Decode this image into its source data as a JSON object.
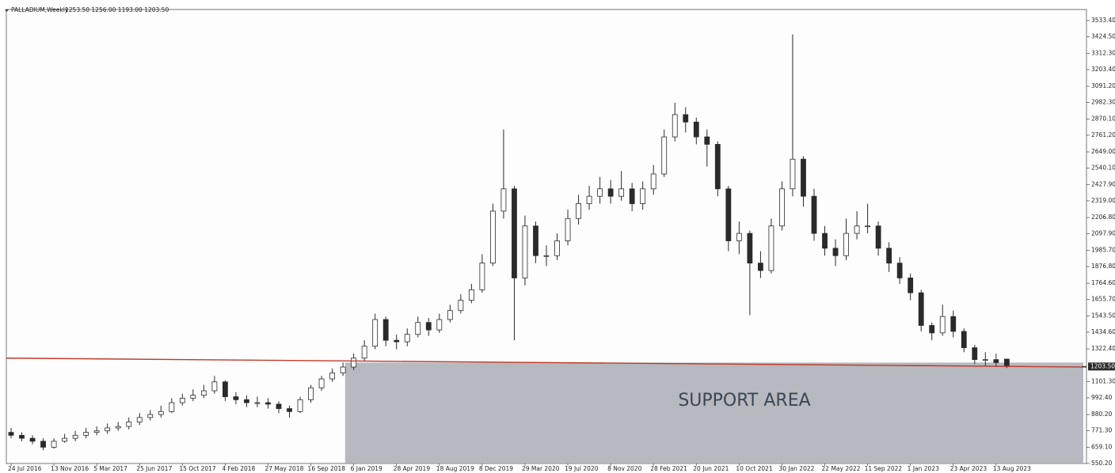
{
  "chart_data": {
    "type": "candlestick",
    "title": "PALLADIUM,Weekly",
    "quote": "1253.50 1256.00 1193.00 1203.50",
    "categories": [
      "24 Jul 2016",
      null,
      null,
      null,
      "13 Nov 2016",
      null,
      null,
      null,
      "5 Mar 2017",
      null,
      null,
      null,
      "25 Jun 2017",
      null,
      null,
      null,
      "15 Oct 2017",
      null,
      null,
      null,
      "4 Feb 2018",
      null,
      null,
      null,
      "27 May 2018",
      null,
      null,
      null,
      "16 Sep 2018",
      null,
      null,
      null,
      "6 Jan 2019",
      null,
      null,
      null,
      "28 Apr 2019",
      null,
      null,
      null,
      "18 Aug 2019",
      null,
      null,
      null,
      "8 Dec 2019",
      null,
      null,
      null,
      "29 Mar 2020",
      null,
      null,
      null,
      "19 Jul 2020",
      null,
      null,
      null,
      "8 Nov 2020",
      null,
      null,
      null,
      "28 Feb 2021",
      null,
      null,
      null,
      "20 Jun 2021",
      null,
      null,
      null,
      "10 Oct 2021",
      null,
      null,
      null,
      "30 Jan 2022",
      null,
      null,
      null,
      "22 May 2022",
      null,
      null,
      null,
      "11 Sep 2022",
      null,
      null,
      null,
      "1 Jan 2023",
      null,
      null,
      null,
      "23 Apr 2023",
      null,
      null,
      null,
      "13 Aug 2023",
      null
    ],
    "open": [
      760,
      740,
      720,
      700,
      660,
      700,
      720,
      740,
      760,
      770,
      790,
      800,
      830,
      860,
      880,
      900,
      960,
      990,
      1010,
      1040,
      1100,
      1000,
      980,
      960,
      960,
      950,
      920,
      900,
      980,
      1060,
      1120,
      1160,
      1200,
      1260,
      1340,
      1520,
      1380,
      1370,
      1420,
      1500,
      1450,
      1520,
      1580,
      1650,
      1720,
      1900,
      2250,
      2400,
      1800,
      2150,
      1950,
      1950,
      2050,
      2200,
      2300,
      2350,
      2400,
      2350,
      2400,
      2300,
      2400,
      2500,
      2750,
      2900,
      2850,
      2750,
      2700,
      2400,
      2050,
      2100,
      1900,
      1850,
      2150,
      2400,
      2600,
      2350,
      2100,
      2000,
      1950,
      2100,
      2150,
      2150,
      2000,
      1900,
      1800,
      1700,
      1480,
      1430,
      1540,
      1440,
      1330,
      1250,
      1250,
      1253.5
    ],
    "high": [
      790,
      760,
      740,
      720,
      720,
      750,
      770,
      790,
      800,
      820,
      830,
      860,
      890,
      910,
      940,
      990,
      1020,
      1050,
      1080,
      1140,
      1110,
      1030,
      1010,
      1000,
      990,
      970,
      940,
      1000,
      1080,
      1140,
      1190,
      1230,
      1290,
      1380,
      1560,
      1540,
      1420,
      1460,
      1540,
      1530,
      1560,
      1620,
      1690,
      1760,
      1960,
      2300,
      2800,
      2420,
      2220,
      2180,
      2020,
      2100,
      2260,
      2360,
      2420,
      2480,
      2460,
      2520,
      2440,
      2450,
      2560,
      2800,
      2980,
      2950,
      2880,
      2800,
      2720,
      2420,
      2180,
      2120,
      1980,
      2200,
      2450,
      3440,
      2620,
      2400,
      2150,
      2060,
      2200,
      2250,
      2300,
      2180,
      2040,
      1940,
      1830,
      1720,
      1500,
      1620,
      1580,
      1460,
      1350,
      1300,
      1290,
      1256
    ],
    "low": [
      720,
      700,
      680,
      640,
      650,
      690,
      700,
      720,
      740,
      750,
      770,
      780,
      810,
      840,
      860,
      890,
      940,
      970,
      990,
      1020,
      970,
      950,
      930,
      930,
      920,
      890,
      860,
      890,
      960,
      1040,
      1100,
      1140,
      1180,
      1240,
      1320,
      1340,
      1320,
      1340,
      1400,
      1410,
      1430,
      1500,
      1560,
      1630,
      1700,
      1880,
      2200,
      1380,
      1750,
      1900,
      1880,
      1920,
      2020,
      2160,
      2260,
      2300,
      2300,
      2320,
      2250,
      2260,
      2360,
      2480,
      2720,
      2780,
      2700,
      2550,
      2350,
      1980,
      1960,
      1550,
      1800,
      1830,
      2120,
      2350,
      2280,
      2050,
      1950,
      1880,
      1920,
      2060,
      2100,
      1950,
      1840,
      1760,
      1650,
      1440,
      1380,
      1410,
      1400,
      1300,
      1220,
      1210,
      1200,
      1193
    ],
    "close": [
      740,
      720,
      700,
      660,
      700,
      720,
      740,
      760,
      770,
      790,
      800,
      830,
      860,
      880,
      900,
      960,
      990,
      1010,
      1040,
      1100,
      1000,
      980,
      960,
      960,
      950,
      920,
      900,
      980,
      1060,
      1120,
      1160,
      1200,
      1260,
      1340,
      1520,
      1380,
      1370,
      1420,
      1500,
      1450,
      1520,
      1580,
      1650,
      1720,
      1900,
      2250,
      2400,
      1800,
      2150,
      1950,
      1950,
      2050,
      2200,
      2300,
      2350,
      2400,
      2350,
      2400,
      2300,
      2400,
      2500,
      2750,
      2900,
      2850,
      2750,
      2700,
      2400,
      2050,
      2100,
      1900,
      1850,
      2150,
      2400,
      2600,
      2350,
      2100,
      2000,
      1950,
      2100,
      2150,
      2150,
      2000,
      1900,
      1800,
      1700,
      1480,
      1430,
      1540,
      1440,
      1330,
      1250,
      1250,
      1230,
      1203.5
    ],
    "color": "#2a2a2a",
    "ylim": [
      550.2,
      3608
    ],
    "yticks": [
      {
        "value": 550.2,
        "label": "550.20"
      },
      {
        "value": 659.1,
        "label": "659.10"
      },
      {
        "value": 771.3,
        "label": "771.30"
      },
      {
        "value": 880.2,
        "label": "880.20"
      },
      {
        "value": 992.4,
        "label": "992.40"
      },
      {
        "value": 1101.3,
        "label": "1101.30"
      },
      {
        "value": 1322.4,
        "label": "1322.40"
      },
      {
        "value": 1434.6,
        "label": "1434.60"
      },
      {
        "value": 1543.5,
        "label": "1543.50"
      },
      {
        "value": 1655.7,
        "label": "1655.70"
      },
      {
        "value": 1764.6,
        "label": "1764.60"
      },
      {
        "value": 1876.8,
        "label": "1876.80"
      },
      {
        "value": 1985.7,
        "label": "1985.70"
      },
      {
        "value": 2097.9,
        "label": "2097.90"
      },
      {
        "value": 2206.8,
        "label": "2206.80"
      },
      {
        "value": 2319,
        "label": "2319.00"
      },
      {
        "value": 2427.9,
        "label": "2427.90"
      },
      {
        "value": 2540.1,
        "label": "2540.10"
      },
      {
        "value": 2649,
        "label": "2649.00"
      },
      {
        "value": 2761.2,
        "label": "2761.20"
      },
      {
        "value": 2870.1,
        "label": "2870.10"
      },
      {
        "value": 2982.3,
        "label": "2982.30"
      },
      {
        "value": 3091.2,
        "label": "3091.20"
      },
      {
        "value": 3203.4,
        "label": "3203.40"
      },
      {
        "value": 3312.3,
        "label": "3312.30"
      },
      {
        "value": 3424.5,
        "label": "3424.50"
      },
      {
        "value": 3533.4,
        "label": "3533.40"
      }
    ],
    "price_marker": {
      "value": 1203.5,
      "label": "1203.50"
    },
    "trendline": {
      "start": 1260,
      "end": 1200,
      "color": "#c0392b"
    },
    "support_area": {
      "label": "SUPPORT AREA",
      "from": "6 Jan 2019",
      "top": 1230,
      "color": "#a9adb4"
    }
  }
}
